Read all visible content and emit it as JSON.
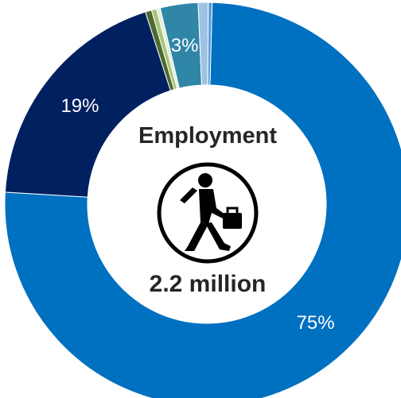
{
  "chart_data": {
    "type": "pie",
    "variant": "donut",
    "title": "Employment",
    "center_value": "2.2 million",
    "center_icon": "walking-businessman-icon",
    "slices": [
      {
        "value": 75,
        "label": "75%",
        "color": "#0070C0"
      },
      {
        "value": 19,
        "label": "19%",
        "color": "#002060"
      },
      {
        "value": 0.5,
        "label": "",
        "color": "#4E6B2F"
      },
      {
        "value": 0.4,
        "label": "",
        "color": "#A9C47F"
      },
      {
        "value": 0.3,
        "label": "",
        "color": "#E2EFDA"
      },
      {
        "value": 3,
        "label": "3%",
        "color": "#2F86A6"
      },
      {
        "value": 0.8,
        "label": "",
        "color": "#9DC3E6"
      },
      {
        "value": 0.3,
        "label": "",
        "color": "#5B9BD5"
      }
    ]
  }
}
